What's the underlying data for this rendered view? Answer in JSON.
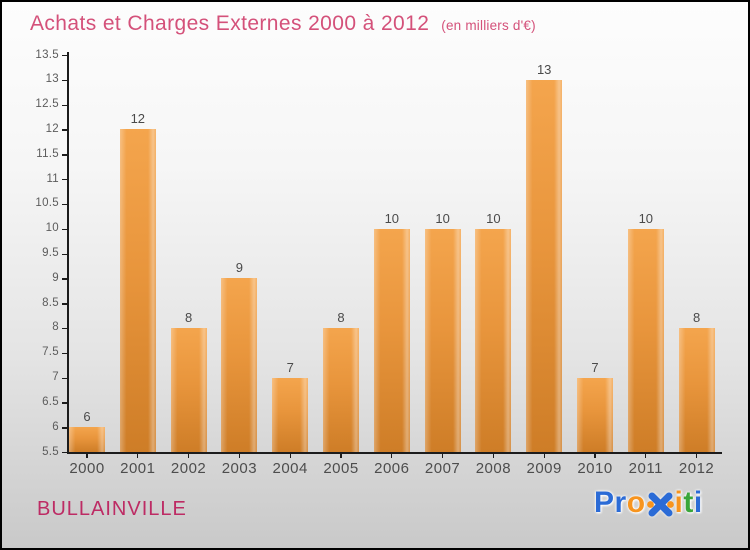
{
  "header": {
    "title": "Achats et Charges Externes 2000 à 2012",
    "subtitle": "(en milliers d'€)"
  },
  "chart_data": {
    "type": "bar",
    "title": "Achats et Charges Externes 2000 à 2012",
    "subtitle": "(en milliers d'€)",
    "categories": [
      "2000",
      "2001",
      "2002",
      "2003",
      "2004",
      "2005",
      "2006",
      "2007",
      "2008",
      "2009",
      "2010",
      "2011",
      "2012"
    ],
    "values": [
      6,
      12,
      8,
      9,
      7,
      8,
      10,
      10,
      10,
      13,
      7,
      10,
      8
    ],
    "xlabel": "",
    "ylabel": "",
    "ylim": [
      5.5,
      13.5
    ],
    "ytick_step": 0.5,
    "yticks": [
      5.5,
      6,
      6.5,
      7,
      7.5,
      8,
      8.5,
      9,
      9.5,
      10,
      10.5,
      11,
      11.5,
      12,
      12.5,
      13,
      13.5
    ],
    "grid": "off",
    "legend": "none",
    "bar_color_top": "#f4a54d",
    "bar_color_bottom": "#ce7d27",
    "value_labels_shown": true
  },
  "footer": {
    "location": "BULLAINVILLE",
    "logo": {
      "name": "Proxiti",
      "letters": [
        {
          "ch": "P",
          "color": "#2b6bd6"
        },
        {
          "ch": "r",
          "color": "#2b6bd6"
        },
        {
          "ch": "o",
          "color": "#f7941e"
        },
        {
          "ch": "x",
          "color": "icon"
        },
        {
          "ch": "i",
          "color": "#f7941e"
        },
        {
          "ch": "t",
          "color": "#3aa63a"
        },
        {
          "ch": "i",
          "color": "#2b6bd6"
        }
      ],
      "x_icon_colors": {
        "cross": "#2b6bd6",
        "dots": "#f7941e"
      }
    }
  },
  "colors": {
    "title_pink": "#d4517a",
    "location_crimson": "#bd2b64",
    "axis": "#1c1c1c",
    "tick_label": "#5c5c5c",
    "value_label": "#4a4a4a"
  }
}
